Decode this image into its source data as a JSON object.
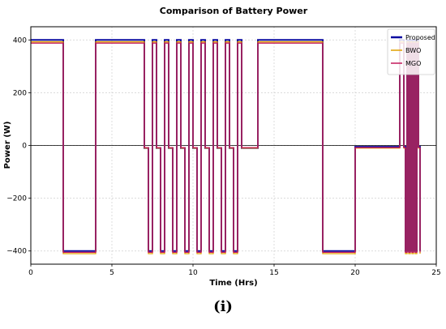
{
  "chart_data": {
    "type": "line",
    "title": "Comparison of Battery Power",
    "xlabel": "Time (Hrs)",
    "ylabel": "Power (W)",
    "xlim": [
      0,
      25
    ],
    "ylim": [
      -450,
      450
    ],
    "xticks": [
      0,
      5,
      10,
      15,
      20,
      25
    ],
    "yticks": [
      -400,
      -200,
      0,
      200,
      400
    ],
    "ytick_labels": [
      "−400",
      "−200",
      "0",
      "200",
      "400"
    ],
    "grid": true,
    "legend_position": "top-right",
    "series": [
      {
        "name": "Proposed",
        "color": "#0a0aa0",
        "step_times": [
          0,
          2,
          4,
          7,
          7.25,
          7.5,
          7.75,
          8,
          8.25,
          8.5,
          8.75,
          9,
          9.25,
          9.5,
          9.75,
          10,
          10.25,
          10.5,
          10.75,
          11,
          11.25,
          11.5,
          11.75,
          12,
          12.25,
          12.5,
          12.75,
          13,
          14,
          18,
          20,
          22.75,
          23,
          23.1,
          23.2,
          23.3,
          23.4,
          23.5,
          23.6,
          23.7,
          23.8,
          23.9,
          24
        ],
        "values": [
          400,
          -400,
          400,
          -10,
          -400,
          400,
          -10,
          -400,
          400,
          -10,
          -400,
          400,
          -10,
          -400,
          400,
          -10,
          -400,
          400,
          -10,
          -400,
          400,
          -10,
          -400,
          400,
          -10,
          -400,
          400,
          -10,
          400,
          -400,
          -5,
          400,
          -5,
          -400,
          400,
          -400,
          400,
          -400,
          400,
          -400,
          400,
          -5,
          -400
        ]
      },
      {
        "name": "BWO",
        "color": "#e0a000",
        "step_times": [
          0,
          2,
          4,
          7,
          7.25,
          7.5,
          7.75,
          8,
          8.25,
          8.5,
          8.75,
          9,
          9.25,
          9.5,
          9.75,
          10,
          10.25,
          10.5,
          10.75,
          11,
          11.25,
          11.5,
          11.75,
          12,
          12.25,
          12.5,
          12.75,
          13,
          14,
          18,
          20,
          22.75,
          23,
          23.1,
          23.2,
          23.3,
          23.4,
          23.5,
          23.6,
          23.7,
          23.8,
          23.9,
          24
        ],
        "values": [
          393,
          -410,
          393,
          -10,
          -410,
          393,
          -10,
          -410,
          393,
          -10,
          -410,
          393,
          -10,
          -410,
          393,
          -10,
          -410,
          393,
          -10,
          -410,
          393,
          -10,
          -410,
          393,
          -10,
          -410,
          393,
          -10,
          393,
          -410,
          -10,
          393,
          -10,
          -410,
          393,
          -410,
          393,
          -410,
          393,
          -410,
          393,
          -10,
          -410
        ]
      },
      {
        "name": "MGO",
        "color": "#c2185b",
        "step_times": [
          0,
          2,
          4,
          7,
          7.25,
          7.5,
          7.75,
          8,
          8.25,
          8.5,
          8.75,
          9,
          9.25,
          9.5,
          9.75,
          10,
          10.25,
          10.5,
          10.75,
          11,
          11.25,
          11.5,
          11.75,
          12,
          12.25,
          12.5,
          12.75,
          13,
          14,
          18,
          20,
          22.75,
          23,
          23.1,
          23.2,
          23.3,
          23.4,
          23.5,
          23.6,
          23.7,
          23.8,
          23.9,
          24
        ],
        "values": [
          388,
          -405,
          388,
          -8,
          -405,
          388,
          -8,
          -405,
          388,
          -8,
          -405,
          388,
          -8,
          -405,
          388,
          -8,
          -405,
          388,
          -8,
          -405,
          388,
          -8,
          -405,
          388,
          -8,
          -405,
          388,
          -8,
          388,
          -405,
          -8,
          388,
          -8,
          -405,
          388,
          -405,
          388,
          -405,
          388,
          -405,
          388,
          -8,
          -405
        ]
      }
    ]
  },
  "caption": "(i)"
}
